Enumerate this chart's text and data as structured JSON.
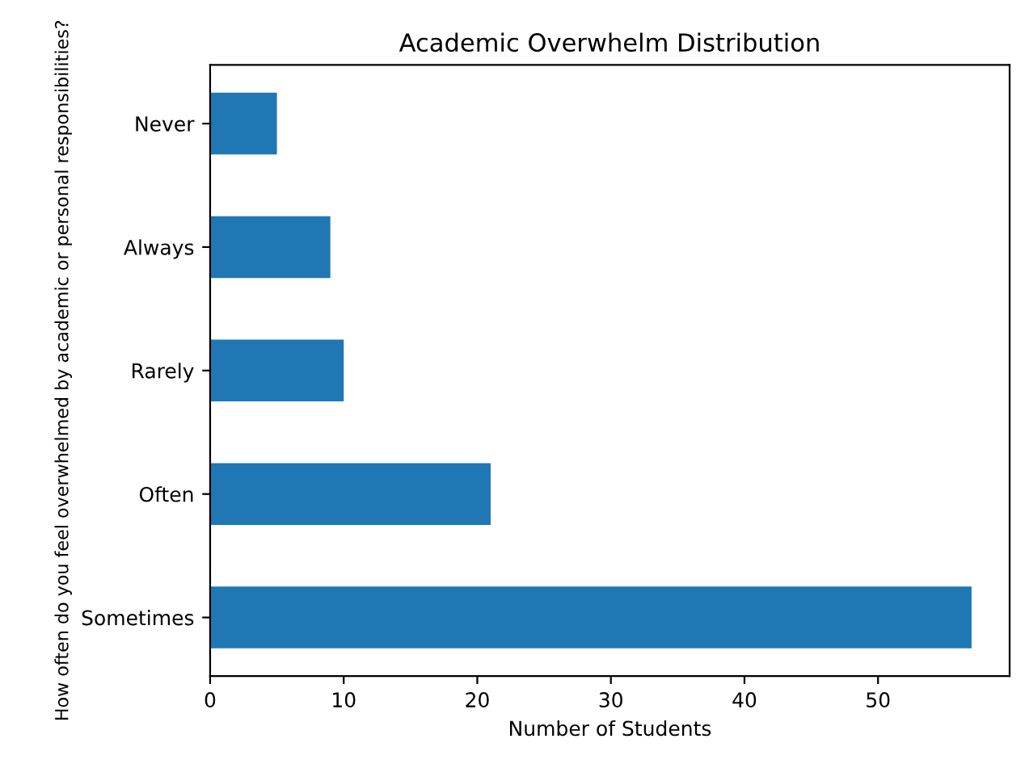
{
  "chart_data": {
    "type": "bar",
    "orientation": "horizontal",
    "title": "Academic Overwhelm Distribution",
    "xlabel": "Number of Students",
    "ylabel": "How often do you feel overwhelmed by academic or personal responsibilities?",
    "categories": [
      "Never",
      "Always",
      "Rarely",
      "Often",
      "Sometimes"
    ],
    "values": [
      5,
      9,
      10,
      21,
      57
    ],
    "color": "#1f77b4",
    "xlim": [
      0,
      59.85
    ],
    "xticks": [
      0,
      10,
      20,
      30,
      40,
      50
    ],
    "grid": false
  }
}
